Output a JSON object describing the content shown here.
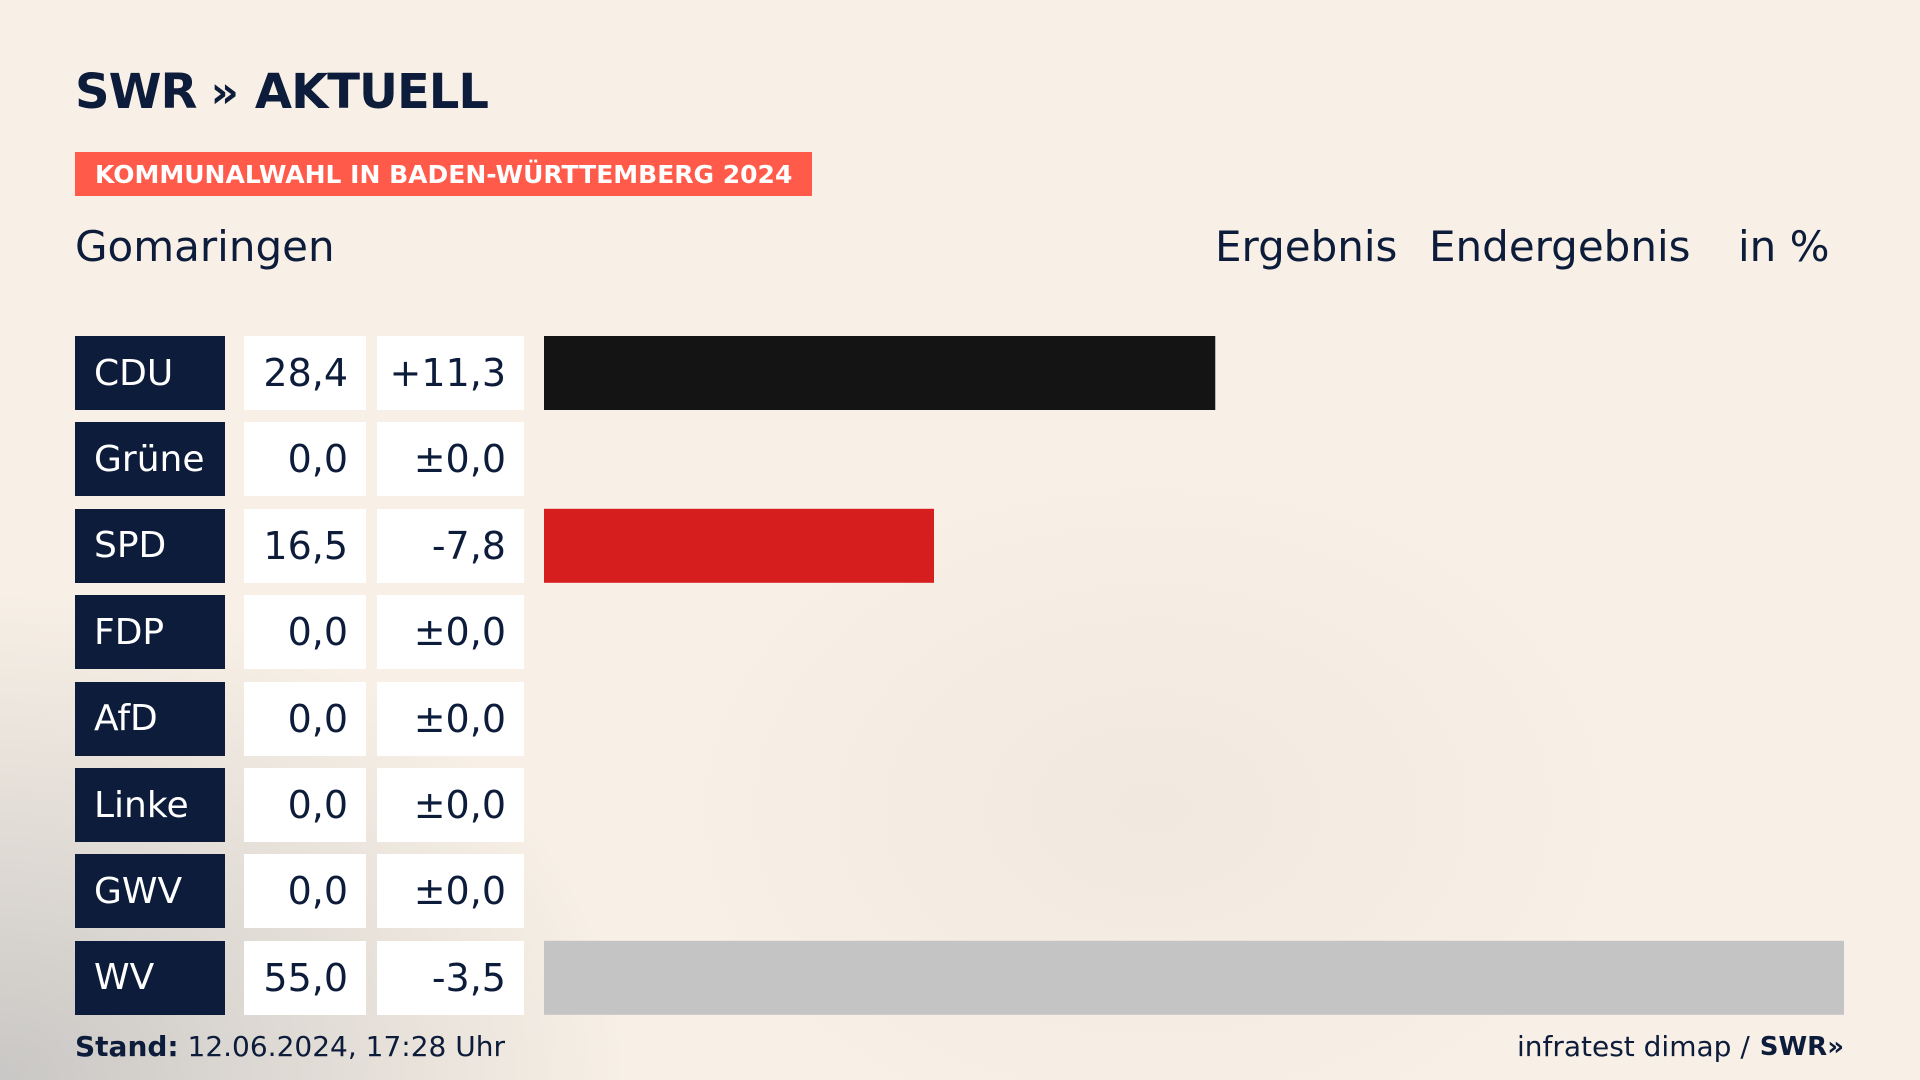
{
  "brand": {
    "logo_left": "SWR",
    "logo_chevrons": "»",
    "logo_right": "AKTUELL"
  },
  "banner": "KOMMUNALWAHL IN BADEN-WÜRTTEMBERG 2024",
  "place": "Gomaringen",
  "headers": {
    "result": "Ergebnis",
    "status": "Endergebnis",
    "unit": "in %"
  },
  "colors": {
    "navy": "#0c1c3a",
    "banner": "#ff5a4a"
  },
  "chart_data": {
    "type": "bar",
    "categories": [
      "CDU",
      "Grüne",
      "SPD",
      "FDP",
      "AfD",
      "Linke",
      "GWV",
      "WV"
    ],
    "values": [
      28.4,
      0.0,
      16.5,
      0.0,
      0.0,
      0.0,
      0.0,
      55.0
    ],
    "values_text": [
      "28,4",
      "0,0",
      "16,5",
      "0,0",
      "0,0",
      "0,0",
      "0,0",
      "55,0"
    ],
    "diffs_text": [
      "+11,3",
      "±0,0",
      "-7,8",
      "±0,0",
      "±0,0",
      "±0,0",
      "±0,0",
      "-3,5"
    ],
    "diffs": [
      11.3,
      0.0,
      -7.8,
      0.0,
      0.0,
      0.0,
      0.0,
      -3.5
    ],
    "bar_colors": [
      "#141414",
      "#1f9a3c",
      "#d71e1e",
      "#f5d800",
      "#1aa0e0",
      "#c0165a",
      "#7a7a7a",
      "#c4c4c4"
    ],
    "xlim": [
      0,
      55
    ]
  },
  "footer": {
    "stand_label": "Stand:",
    "stand_value": " 12.06.2024, 17:28 Uhr",
    "source": "infratest dimap /",
    "source_logo": "SWR",
    "source_logo_chevrons": "»"
  }
}
